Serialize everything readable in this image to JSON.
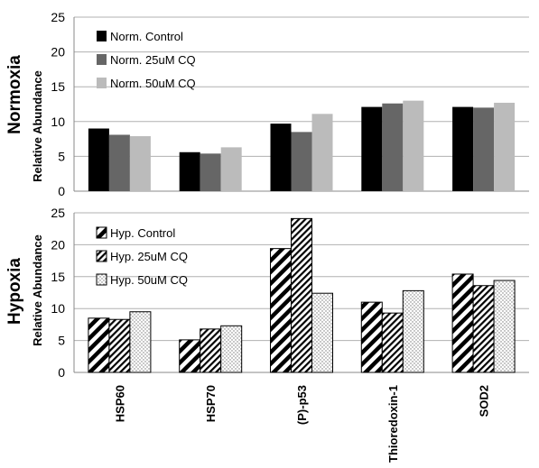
{
  "chart_data": [
    {
      "type": "bar",
      "panel_title": "Normoxia",
      "ylabel": "Relative Abundance",
      "categories": [
        "HSP60",
        "HSP70",
        "(P)-p53",
        "Thioredoxin-1",
        "SOD2"
      ],
      "ylim": [
        0,
        25
      ],
      "yticks": [
        "0",
        "5",
        "10",
        "15",
        "20",
        "25"
      ],
      "grid": true,
      "legend": "top-left",
      "series": [
        {
          "name": "Norm. Control",
          "values": [
            9.0,
            5.6,
            9.7,
            12.1,
            12.1
          ],
          "color": "#000000",
          "pattern": "solid"
        },
        {
          "name": "Norm. 25uM CQ",
          "values": [
            8.1,
            5.4,
            8.5,
            12.6,
            12.0
          ],
          "color": "#666666",
          "pattern": "solid"
        },
        {
          "name": "Norm. 50uM CQ",
          "values": [
            7.9,
            6.3,
            11.1,
            13.0,
            12.7
          ],
          "color": "#bbbbbb",
          "pattern": "solid"
        }
      ]
    },
    {
      "type": "bar",
      "panel_title": "Hypoxia",
      "ylabel": "Relative Abundance",
      "categories": [
        "HSP60",
        "HSP70",
        "(P)-p53",
        "Thioredoxin-1",
        "SOD2"
      ],
      "ylim": [
        0,
        25
      ],
      "yticks": [
        "0",
        "5",
        "10",
        "15",
        "20",
        "25"
      ],
      "grid": true,
      "legend": "top-left",
      "series": [
        {
          "name": "Hyp. Control",
          "values": [
            8.5,
            5.1,
            19.4,
            11.0,
            15.4
          ],
          "color": "#000000",
          "pattern": "wide-diagonal"
        },
        {
          "name": "Hyp. 25uM CQ",
          "values": [
            8.3,
            6.8,
            24.1,
            9.3,
            13.6
          ],
          "color": "#000000",
          "pattern": "narrow-diagonal"
        },
        {
          "name": "Hyp. 50uM CQ",
          "values": [
            9.5,
            7.3,
            12.4,
            12.8,
            14.4
          ],
          "color": "#888888",
          "pattern": "dots"
        }
      ]
    }
  ]
}
